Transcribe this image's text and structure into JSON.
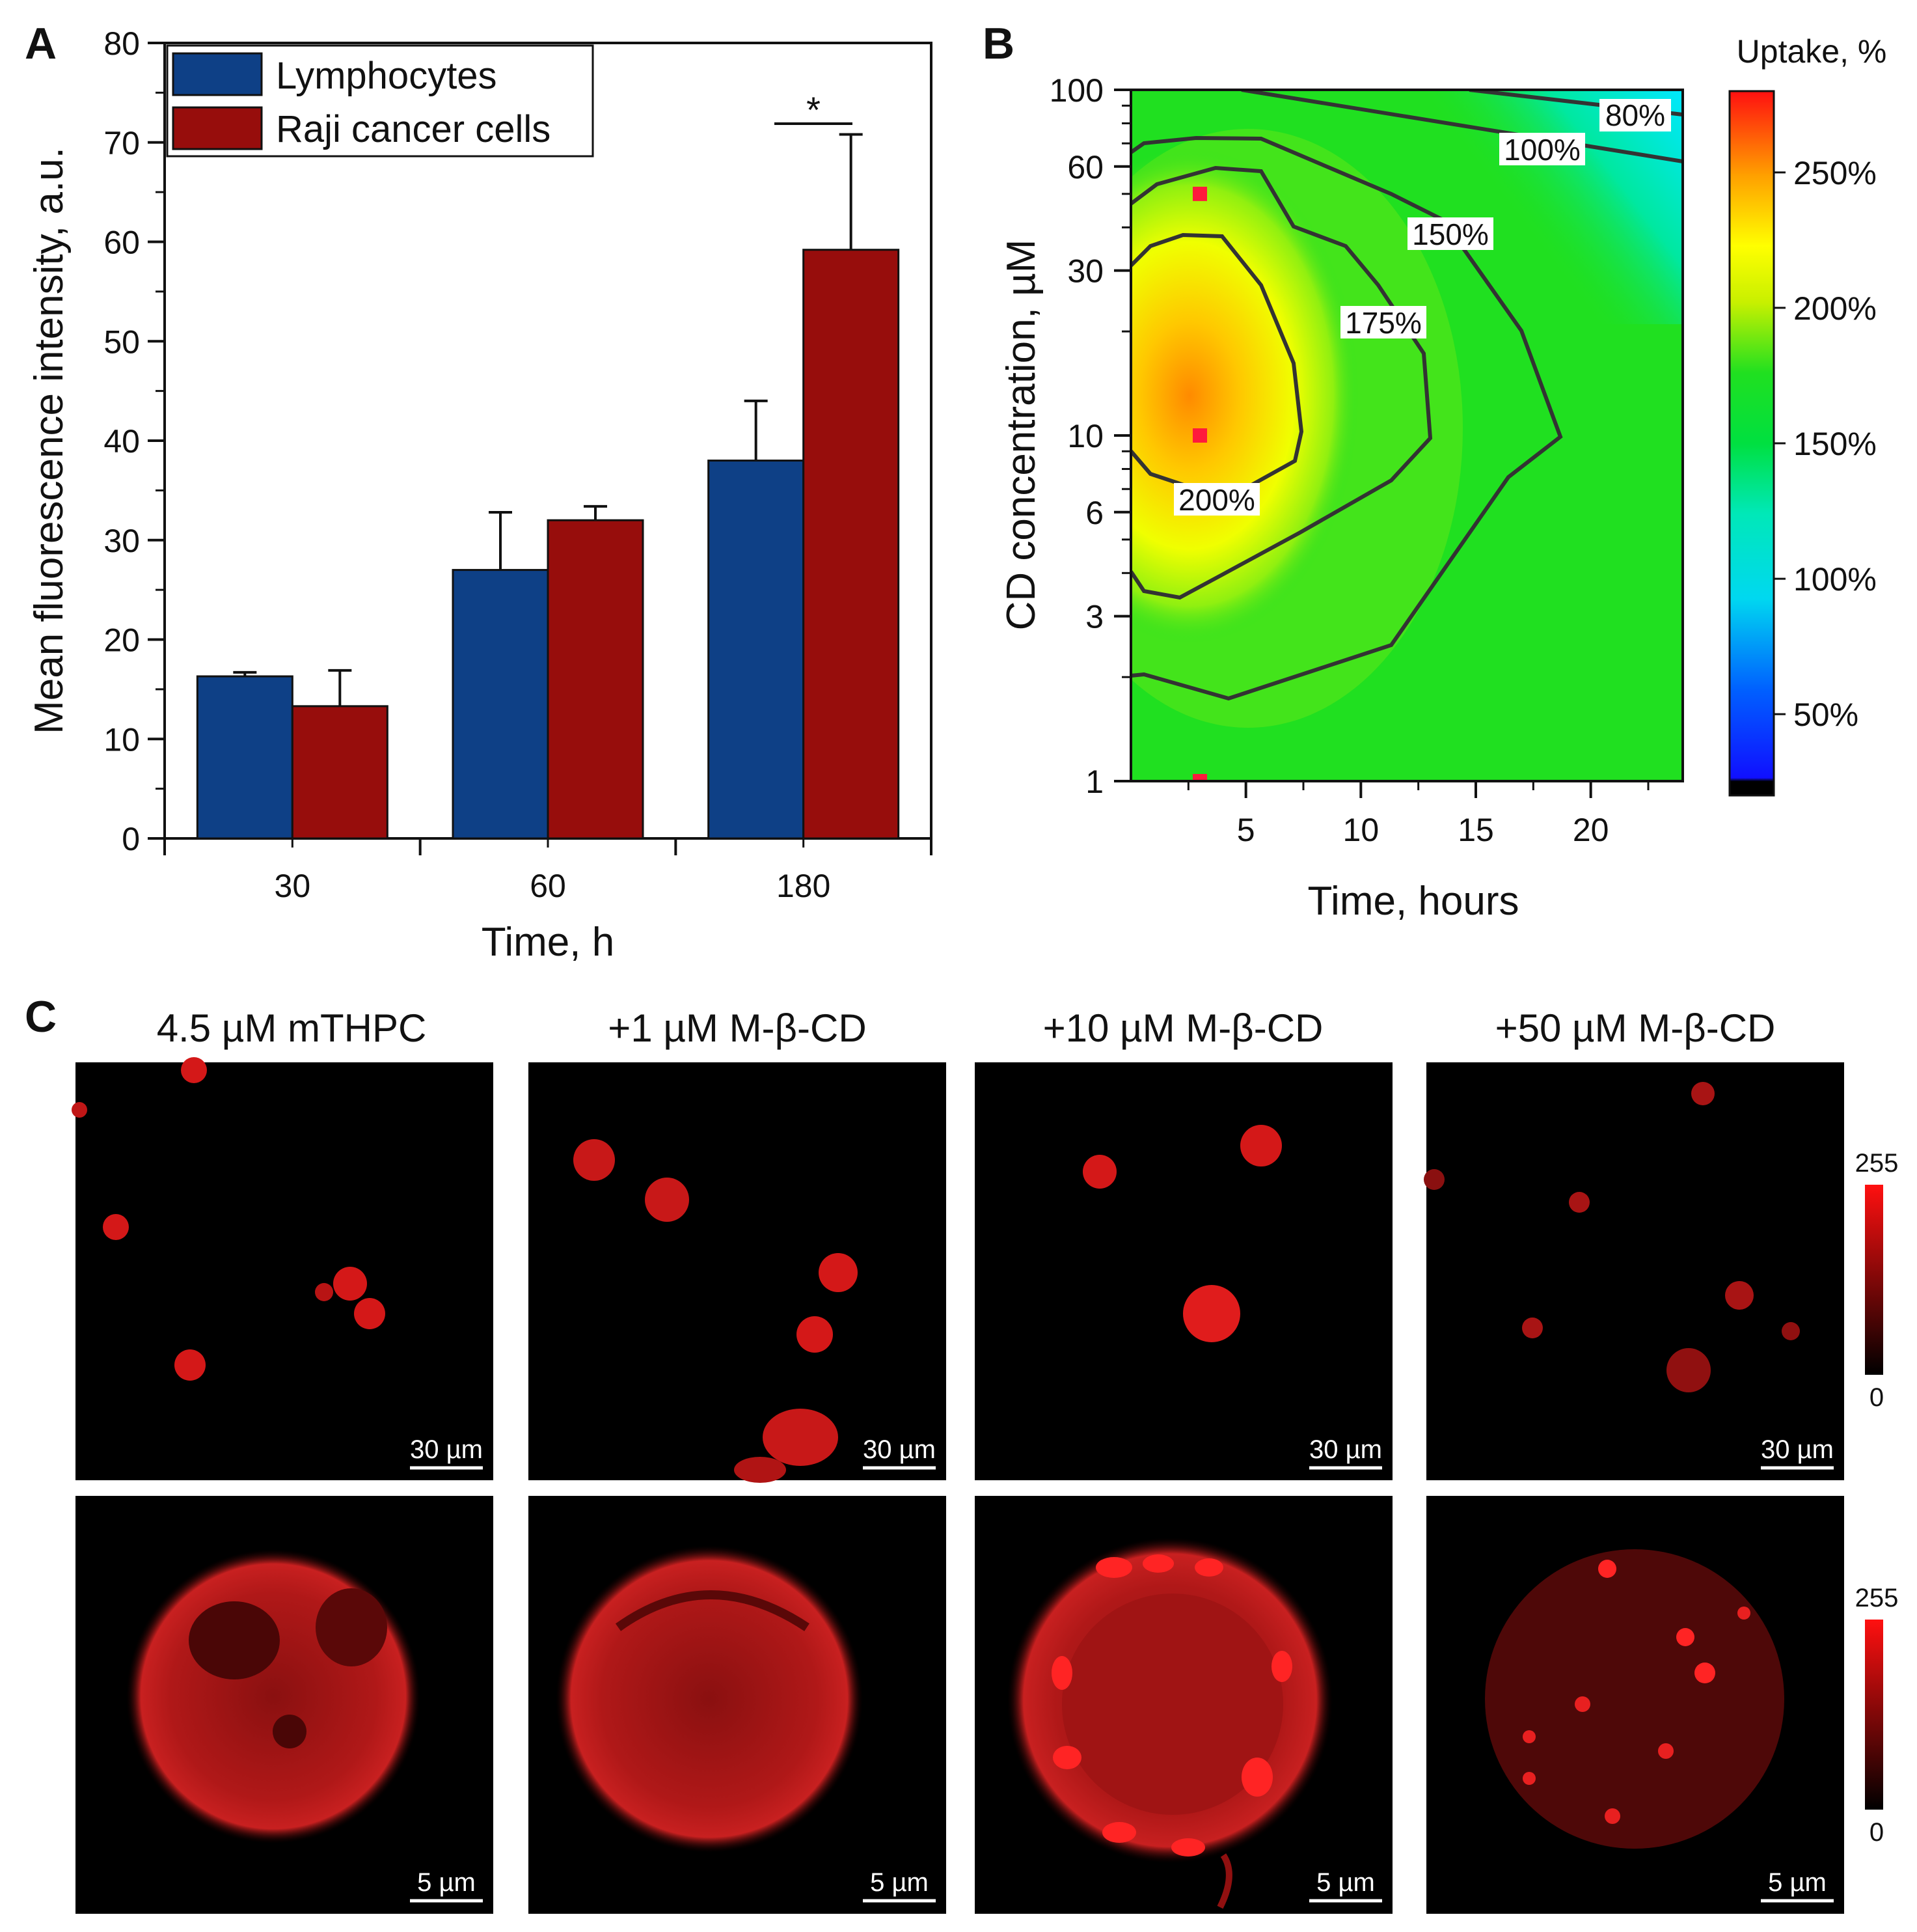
{
  "panels": {
    "A": "A",
    "B": "B",
    "C": "C"
  },
  "chart_data": [
    {
      "panel": "A",
      "type": "bar",
      "categories": [
        "30",
        "60",
        "180"
      ],
      "series": [
        {
          "name": "Lymphocytes",
          "color": "#0e4086",
          "values": [
            16.3,
            27,
            38
          ],
          "errors": [
            0.4,
            5.8,
            6
          ]
        },
        {
          "name": "Raji cancer cells",
          "color": "#970d0c",
          "values": [
            13.3,
            32,
            59.2
          ],
          "errors": [
            3.6,
            1.4,
            11.6
          ]
        }
      ],
      "xlabel": "Time, h",
      "ylabel": "Mean fluorescence intensity, a.u.",
      "ylim": [
        0,
        80
      ],
      "yticks": [
        0,
        10,
        20,
        30,
        40,
        50,
        60,
        70,
        80
      ],
      "significance": {
        "category": "180",
        "label": "*"
      },
      "legend_position": "top-left"
    },
    {
      "panel": "B",
      "type": "heatmap",
      "xlabel": "Time, hours",
      "ylabel": "CD concentration, µM",
      "xlim": [
        0,
        24
      ],
      "ylim": [
        1,
        100
      ],
      "yscale": "log",
      "xticks": [
        5,
        10,
        15,
        20
      ],
      "yticks": [
        1,
        3,
        6,
        10,
        30,
        60,
        100
      ],
      "colorbar": {
        "title": "Uptake, %",
        "ticks": [
          "50%",
          "100%",
          "150%",
          "200%",
          "250%"
        ],
        "range": [
          20,
          280
        ]
      },
      "contour_labels": [
        "80%",
        "100%",
        "150%",
        "175%",
        "200%"
      ],
      "peak": {
        "x": 2.5,
        "y": 11,
        "value": 240
      },
      "sample_points": [
        {
          "x": 3,
          "y": 50
        },
        {
          "x": 3,
          "y": 10
        },
        {
          "x": 3,
          "y": 1
        }
      ]
    }
  ],
  "panel_c": {
    "columns": [
      "4.5 µM mTHPC",
      "+1 µM M-β-CD",
      "+10 µM M-β-CD",
      "+50 µM M-β-CD"
    ],
    "scalebar_top": "30 µm",
    "scalebar_bottom": "5 µm",
    "intensity_max": "255",
    "intensity_min": "0"
  }
}
